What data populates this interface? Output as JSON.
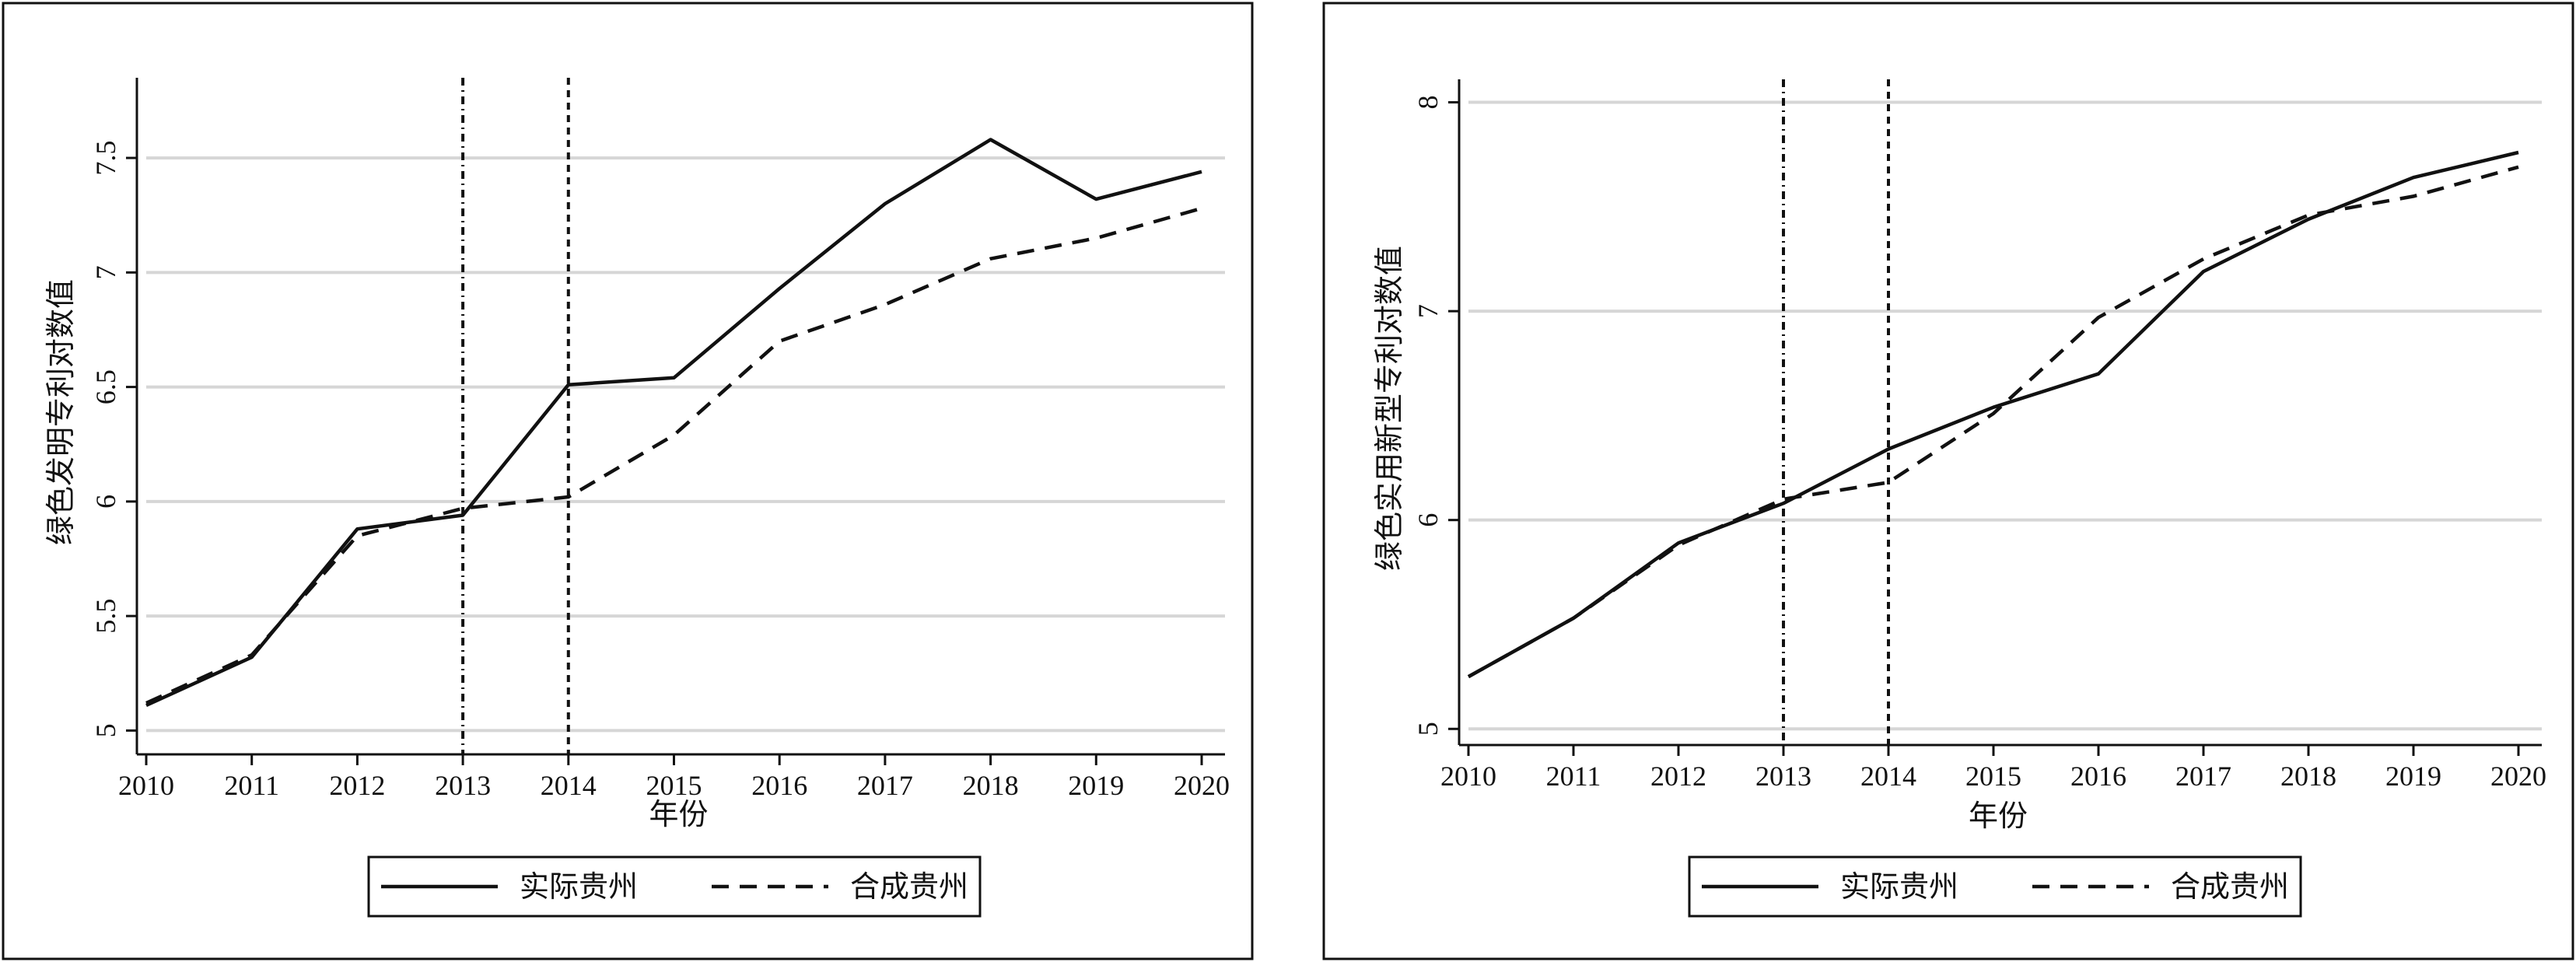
{
  "chart_data": [
    {
      "type": "line",
      "title": "",
      "xlabel": "年份",
      "ylabel": "绿色发明专利对数值",
      "x": [
        2010,
        2011,
        2012,
        2013,
        2014,
        2015,
        2016,
        2017,
        2018,
        2019,
        2020
      ],
      "x_tick_labels": [
        "2010",
        "2011",
        "2012",
        "2013",
        "2014",
        "2015",
        "2016",
        "2017",
        "2018",
        "2019",
        "2020"
      ],
      "xlim": [
        2010,
        2020
      ],
      "ylim": [
        4.93,
        7.85
      ],
      "y_ticks": [
        5,
        5.5,
        6,
        6.5,
        7,
        7.5
      ],
      "y_tick_labels": [
        "5",
        "5.5",
        "6",
        "6.5",
        "7",
        "7.5"
      ],
      "grid": "horizontal",
      "vertical_lines": [
        2013,
        2014
      ],
      "legend_position": "bottom",
      "series": [
        {
          "name": "实际贵州",
          "style": "solid",
          "points": [
            [
              2010,
              5.11
            ],
            [
              2011,
              5.32
            ],
            [
              2012,
              5.88
            ],
            [
              2013,
              5.94
            ],
            [
              2014,
              6.51
            ],
            [
              2015,
              6.54
            ],
            [
              2016,
              6.93
            ],
            [
              2017,
              7.3
            ],
            [
              2018,
              7.58
            ],
            [
              2019,
              7.32
            ],
            [
              2020,
              7.44
            ]
          ]
        },
        {
          "name": "合成贵州",
          "style": "dashed",
          "points": [
            [
              2010,
              5.12
            ],
            [
              2011,
              5.33
            ],
            [
              2012,
              5.85
            ],
            [
              2013,
              5.97
            ],
            [
              2014,
              6.02
            ],
            [
              2015,
              6.29
            ],
            [
              2016,
              6.7
            ],
            [
              2017,
              6.86
            ],
            [
              2018,
              7.06
            ],
            [
              2019,
              7.15
            ],
            [
              2020,
              7.28
            ]
          ]
        }
      ]
    },
    {
      "type": "line",
      "title": "",
      "xlabel": "年份",
      "ylabel": "绿色实用新型专利对数值",
      "x": [
        2010,
        2011,
        2012,
        2013,
        2014,
        2015,
        2016,
        2017,
        2018,
        2019,
        2020
      ],
      "x_tick_labels": [
        "2010",
        "2011",
        "2012",
        "2013",
        "2014",
        "2015",
        "2016",
        "2017",
        "2018",
        "2019",
        "2020"
      ],
      "xlim": [
        2010,
        2020
      ],
      "ylim": [
        4.96,
        8.11
      ],
      "y_ticks": [
        5,
        6,
        7,
        8
      ],
      "y_tick_labels": [
        "5",
        "6",
        "7",
        "8"
      ],
      "grid": "horizontal",
      "vertical_lines": [
        2013,
        2014
      ],
      "legend_position": "bottom",
      "series": [
        {
          "name": "实际贵州",
          "style": "solid",
          "points": [
            [
              2010,
              5.25
            ],
            [
              2011,
              5.53
            ],
            [
              2012,
              5.89
            ],
            [
              2013,
              6.08
            ],
            [
              2014,
              6.34
            ],
            [
              2015,
              6.54
            ],
            [
              2016,
              6.7
            ],
            [
              2017,
              7.19
            ],
            [
              2018,
              7.44
            ],
            [
              2019,
              7.64
            ],
            [
              2020,
              7.76
            ]
          ]
        },
        {
          "name": "合成贵州",
          "style": "dashed",
          "points": [
            [
              2010,
              5.25
            ],
            [
              2011,
              5.53
            ],
            [
              2012,
              5.88
            ],
            [
              2013,
              6.1
            ],
            [
              2014,
              6.18
            ],
            [
              2015,
              6.51
            ],
            [
              2016,
              6.97
            ],
            [
              2017,
              7.25
            ],
            [
              2018,
              7.46
            ],
            [
              2019,
              7.55
            ],
            [
              2020,
              7.69
            ]
          ]
        }
      ]
    }
  ]
}
